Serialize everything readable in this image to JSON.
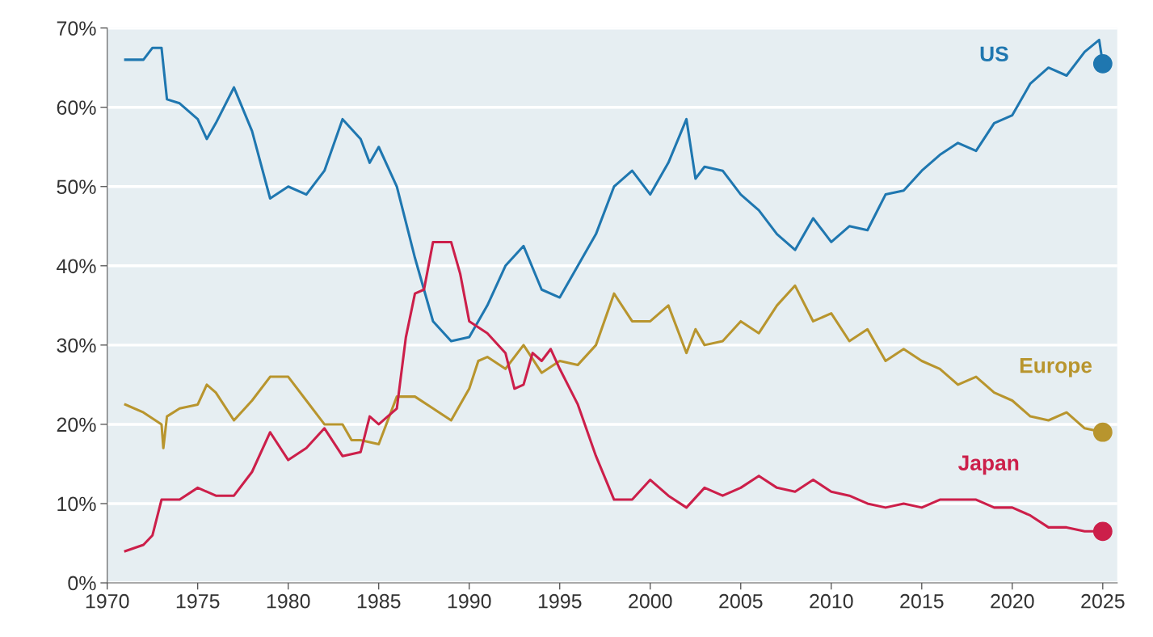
{
  "chart_data": {
    "type": "line",
    "xlim": [
      1970,
      2025.8
    ],
    "xticks": [
      1970,
      1975,
      1980,
      1985,
      1990,
      1995,
      2000,
      2005,
      2010,
      2015,
      2020,
      2025
    ],
    "ylim": [
      0,
      70
    ],
    "yticks": [
      {
        "value": 0,
        "label": "0%"
      },
      {
        "value": 10,
        "label": "10%"
      },
      {
        "value": 20,
        "label": "20%"
      },
      {
        "value": 30,
        "label": "30%"
      },
      {
        "value": 40,
        "label": "40%"
      },
      {
        "value": 50,
        "label": "50%"
      },
      {
        "value": 60,
        "label": "60%"
      },
      {
        "value": 70,
        "label": "70%"
      }
    ],
    "grid": "y",
    "legend": false,
    "series": [
      {
        "name": "US",
        "color": "#1f77b0",
        "x": [
          1971,
          1972,
          1972.5,
          1973,
          1973.3,
          1974,
          1975,
          1975.5,
          1976,
          1977,
          1978,
          1979,
          1980,
          1981,
          1982,
          1983,
          1984,
          1984.5,
          1985,
          1986,
          1987,
          1988,
          1989,
          1990,
          1991,
          1992,
          1993,
          1994,
          1995,
          1996,
          1997,
          1998,
          1999,
          2000,
          2001,
          2002,
          2002.5,
          2003,
          2004,
          2005,
          2006,
          2007,
          2008,
          2009,
          2010,
          2011,
          2012,
          2013,
          2014,
          2015,
          2016,
          2017,
          2018,
          2019,
          2020,
          2021,
          2022,
          2023,
          2024,
          2024.8,
          2025
        ],
        "values": [
          66,
          66,
          67.5,
          67.5,
          61,
          60.5,
          58.5,
          56,
          58,
          62.5,
          57,
          48.5,
          50,
          49,
          52,
          58.5,
          56,
          53,
          55,
          50,
          41,
          33,
          30.5,
          31,
          35,
          40,
          42.5,
          37,
          36,
          40,
          44,
          50,
          52,
          49,
          53,
          58.5,
          51,
          52.5,
          52,
          49,
          47,
          44,
          42,
          46,
          43,
          45,
          44.5,
          49,
          49.5,
          52,
          54,
          55.5,
          54.5,
          58,
          59,
          63,
          65,
          64,
          67,
          68.5,
          65.5
        ]
      },
      {
        "name": "Europe",
        "color": "#b8952e",
        "x": [
          1971,
          1972,
          1973,
          1973.1,
          1973.3,
          1974,
          1975,
          1975.5,
          1976,
          1977,
          1978,
          1979,
          1980,
          1981,
          1982,
          1983,
          1983.5,
          1984,
          1985,
          1986,
          1987,
          1988,
          1989,
          1990,
          1990.5,
          1991,
          1992,
          1993,
          1994,
          1995,
          1996,
          1997,
          1998,
          1999,
          2000,
          2001,
          2002,
          2002.5,
          2003,
          2004,
          2005,
          2006,
          2007,
          2008,
          2009,
          2010,
          2011,
          2012,
          2013,
          2014,
          2015,
          2016,
          2017,
          2018,
          2019,
          2020,
          2021,
          2022,
          2023,
          2024,
          2025
        ],
        "values": [
          22.5,
          21.5,
          20,
          17,
          21,
          22,
          22.5,
          25,
          24,
          20.5,
          23,
          26,
          26,
          23,
          20,
          20,
          18,
          18,
          17.5,
          23.5,
          23.5,
          22,
          20.5,
          24.5,
          28,
          28.5,
          27,
          30,
          26.5,
          28,
          27.5,
          30,
          36.5,
          33,
          33,
          35,
          29,
          32,
          30,
          30.5,
          33,
          31.5,
          35,
          37.5,
          33,
          34,
          30.5,
          32,
          28,
          29.5,
          28,
          27,
          25,
          26,
          24,
          23,
          21,
          20.5,
          21.5,
          19.5,
          19
        ]
      },
      {
        "name": "Japan",
        "color": "#cc1f4a",
        "x": [
          1971,
          1972,
          1972.5,
          1973,
          1974,
          1975,
          1976,
          1977,
          1978,
          1979,
          1980,
          1981,
          1982,
          1983,
          1984,
          1984.5,
          1985,
          1986,
          1986.5,
          1987,
          1987.5,
          1988,
          1989,
          1989.5,
          1990,
          1991,
          1992,
          1992.5,
          1993,
          1993.5,
          1994,
          1994.5,
          1995,
          1996,
          1997,
          1998,
          1999,
          2000,
          2001,
          2002,
          2003,
          2004,
          2005,
          2006,
          2007,
          2008,
          2009,
          2010,
          2011,
          2012,
          2013,
          2014,
          2015,
          2016,
          2017,
          2018,
          2019,
          2020,
          2021,
          2022,
          2023,
          2024,
          2025
        ],
        "values": [
          4,
          4.8,
          6,
          10.5,
          10.5,
          12,
          11,
          11,
          14,
          19,
          15.5,
          17,
          19.5,
          16,
          16.5,
          21,
          20,
          22,
          31,
          36.5,
          37,
          43,
          43,
          39,
          33,
          31.5,
          29,
          24.5,
          25,
          29,
          28,
          29.5,
          27,
          22.5,
          16,
          10.5,
          10.5,
          13,
          11,
          9.5,
          12,
          11,
          12,
          13.5,
          12,
          11.5,
          13,
          11.5,
          11,
          10,
          9.5,
          10,
          9.5,
          10.5,
          10.5,
          10.5,
          9.5,
          9.5,
          8.5,
          7,
          7,
          6.5,
          6.5
        ]
      },
      {
        "type": "scatter",
        "color": "#1f77b0",
        "x": [
          2025
        ],
        "values": [
          65.5
        ]
      },
      {
        "type": "scatter",
        "color": "#b8952e",
        "x": [
          2025
        ],
        "values": [
          19
        ]
      },
      {
        "type": "scatter",
        "color": "#cc1f4a",
        "x": [
          2025
        ],
        "values": [
          6.5
        ]
      }
    ]
  }
}
